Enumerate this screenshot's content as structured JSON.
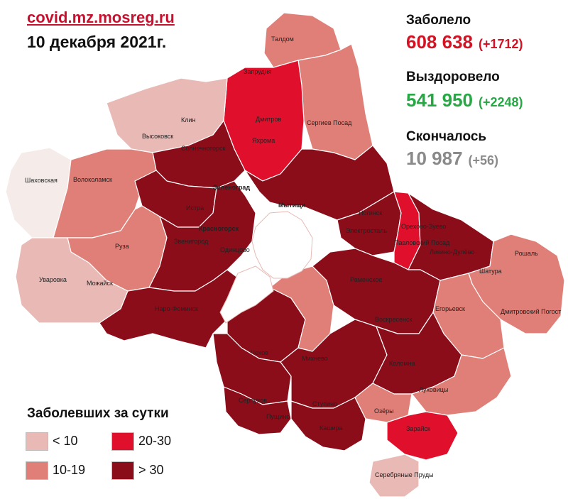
{
  "header": {
    "site": "covid.mz.mosreg.ru",
    "date": "10 декабря 2021г."
  },
  "stats": {
    "infected_label": "Заболело",
    "infected_value": "608 638",
    "infected_delta": "(+1712)",
    "recovered_label": "Выздоровело",
    "recovered_value": "541 950",
    "recovered_delta": "(+2248)",
    "deaths_label": "Скончалось",
    "deaths_value": "10 987",
    "deaths_delta": "(+56)"
  },
  "legend": {
    "title": "Заболевших за сутки",
    "items": [
      {
        "label": "< 10",
        "color": "#e8b9b5"
      },
      {
        "label": "10-19",
        "color": "#e07f78"
      },
      {
        "label": "20-30",
        "color": "#e0102d"
      },
      {
        "label": "> 30",
        "color": "#8b0d1a"
      }
    ]
  },
  "colors": {
    "site": "#c8102e",
    "infected": "#d41224",
    "recovered": "#27a844",
    "deaths": "#8a8a8a",
    "moscow": "#ffffff"
  },
  "map_labels": {
    "taldom": "Талдом",
    "zaprudnya": "Запрудня",
    "dmitrov": "Дмитров",
    "yakhroma": "Яхрома",
    "sergiev_posad": "Сергиев Посад",
    "klin": "Клин",
    "vysokovsk": "Высоковск",
    "solnechnogorsk": "Солнечногорск",
    "shakhovskaya": "Шаховская",
    "volokolamsk": "Волоколамск",
    "zelenograd": "Зеленоград",
    "istra": "Истра",
    "mytishchi": "Мытищи",
    "noginsk": "Ногинск",
    "elektrostal": "Электросталь",
    "orekhovo_zuevo": "Орехово-Зуево",
    "pavlovsky_posad": "Павловский Посад",
    "likino_dulevo": "Ликино-Дулёво",
    "roshal": "Рошаль",
    "shatura": "Шатура",
    "krasnogorsk": "Красногорск",
    "zvenigorod": "Звенигород",
    "odintsovo": "Одинцово",
    "ruza": "Руза",
    "uvarovka": "Уваровка",
    "mozhaisk": "Можайск",
    "naro_fominsk": "Наро-Фоминск",
    "ramenskoe": "Раменское",
    "egorievsk": "Егорьевск",
    "dmitrovsky_pogost": "Дмитровский Погост",
    "voskresensk": "Воскресенск",
    "chekhov": "Чехов",
    "mikhnevo": "Михнево",
    "kolomna": "Коломна",
    "serpukhov": "Серпухов",
    "stupino": "Ступино",
    "pushchino": "Пущино",
    "kashira": "Кашира",
    "ozyory": "Озёры",
    "lukhovitsy": "Луховицы",
    "zaraysk": "Зарайск",
    "serebryanye_prudy": "Серебряные Пруды"
  }
}
